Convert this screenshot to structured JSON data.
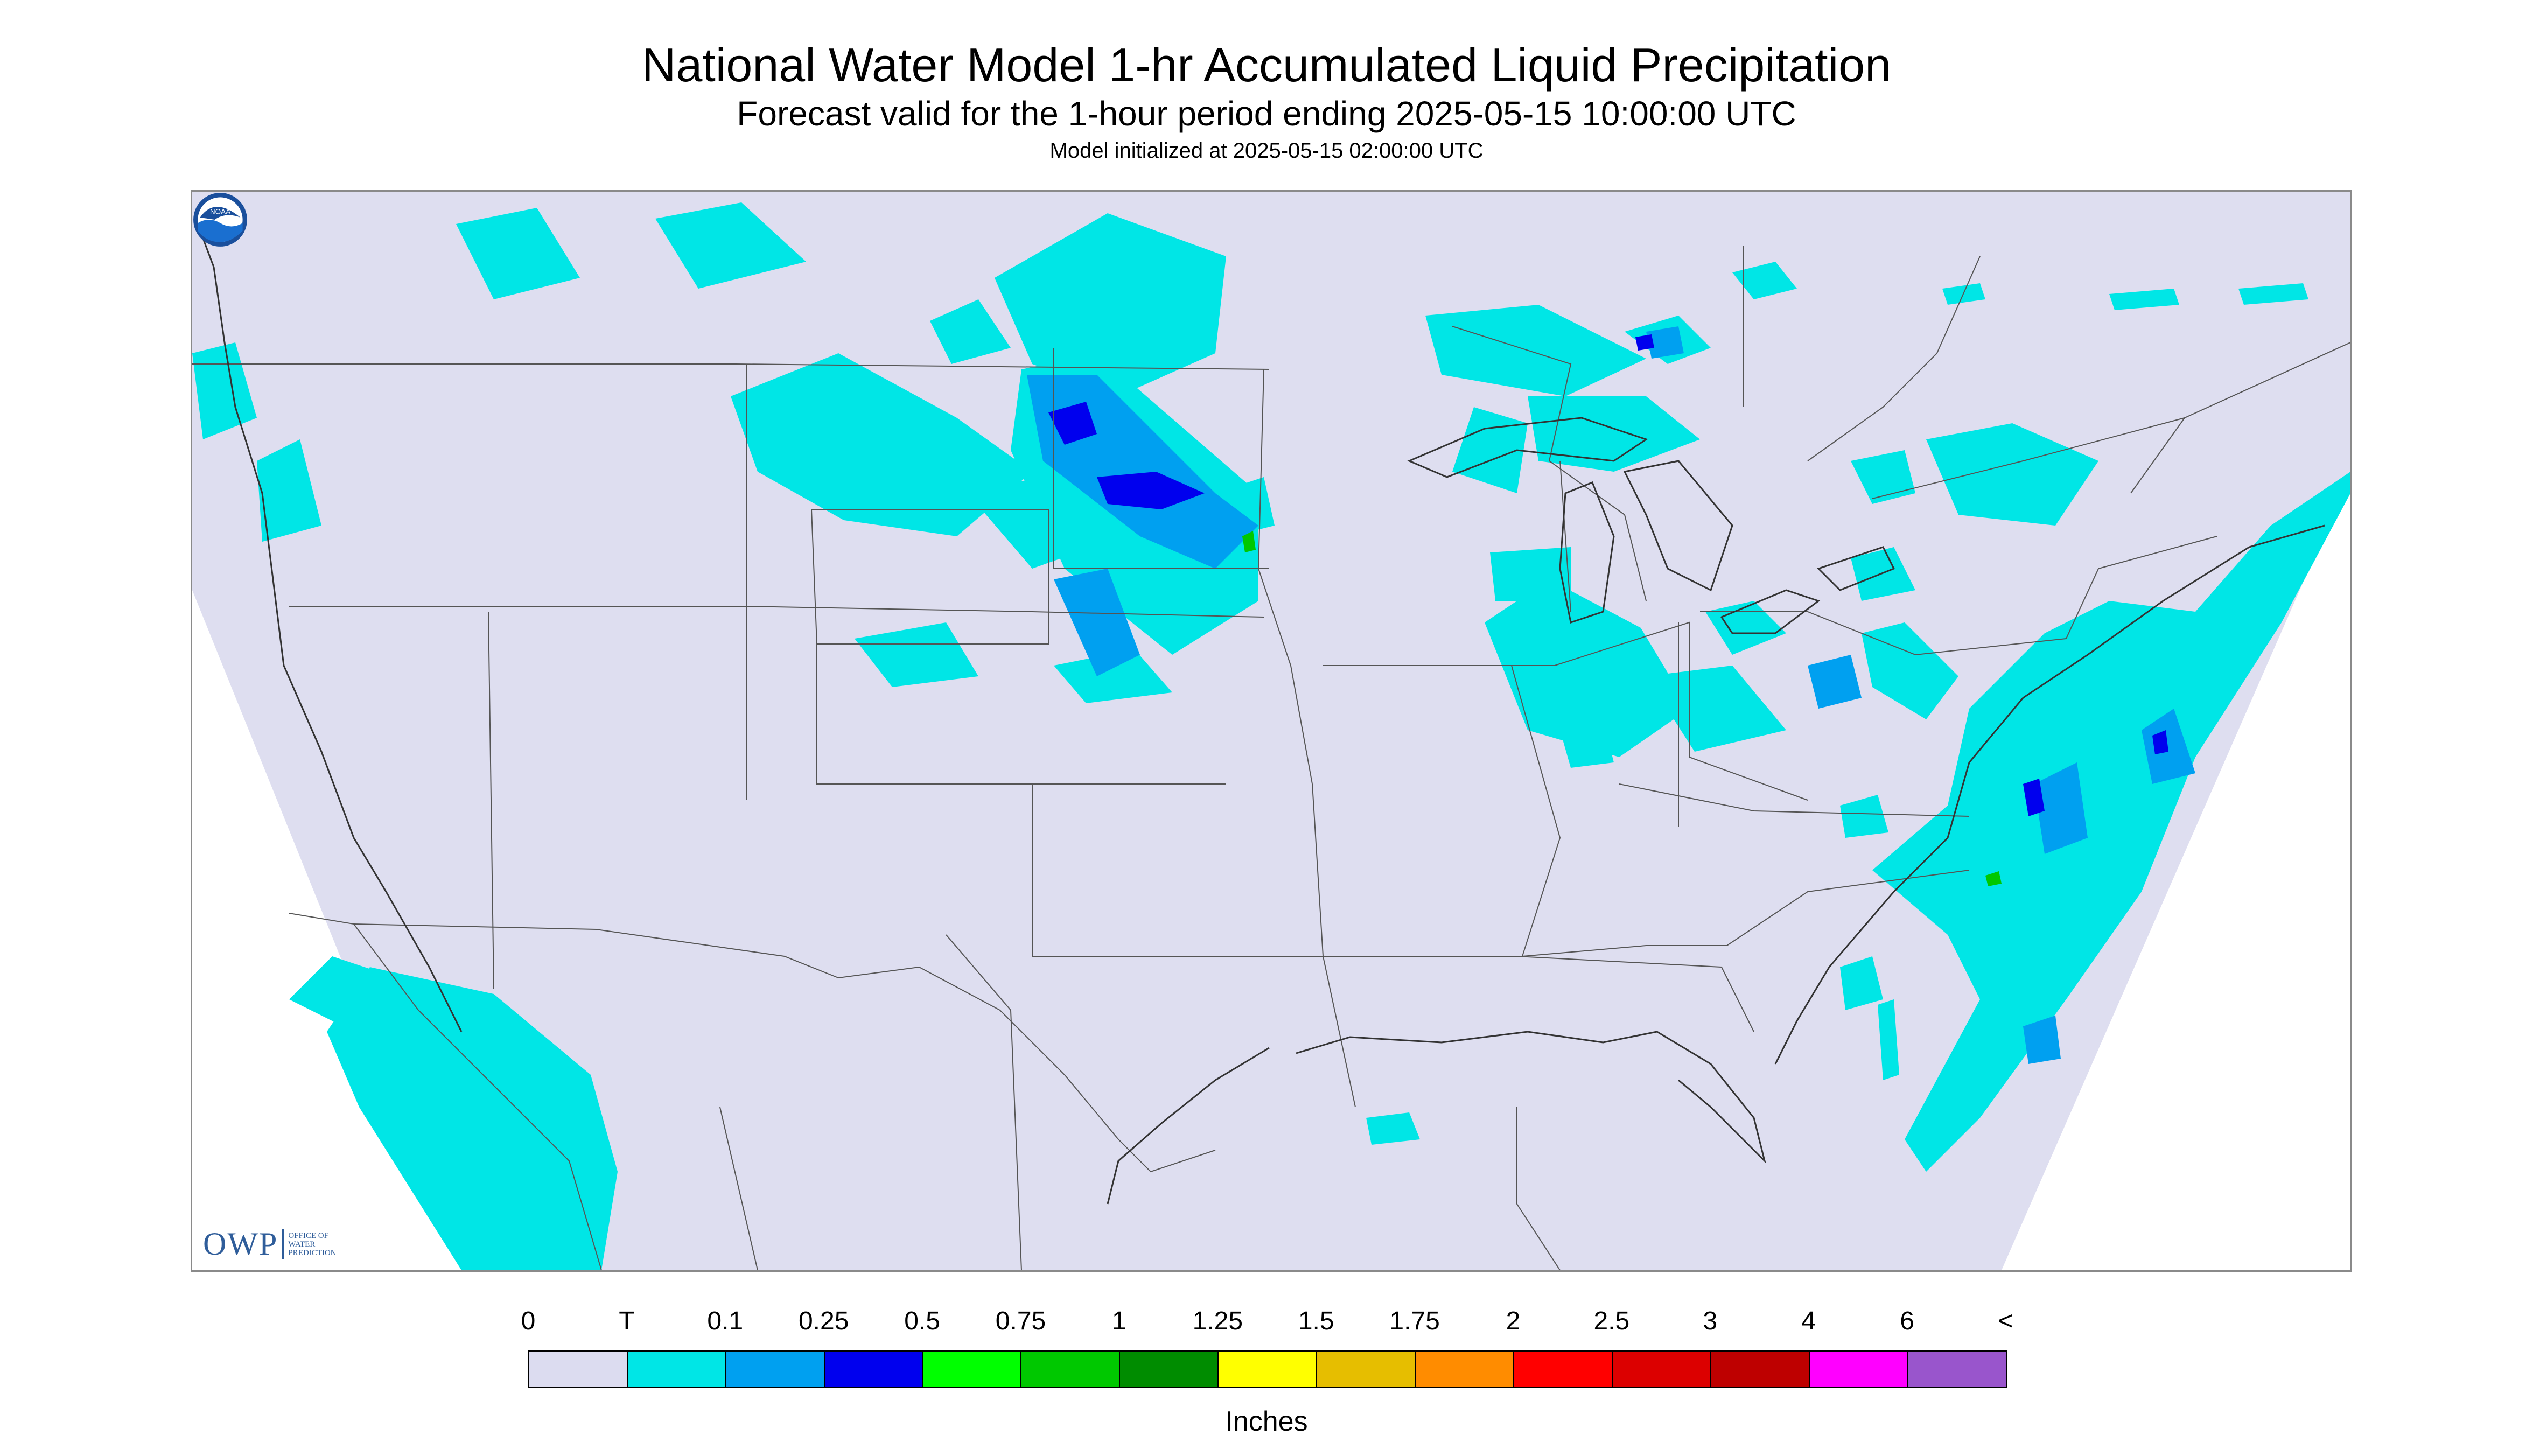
{
  "header": {
    "title": "National Water Model 1-hr Accumulated Liquid Precipitation",
    "subtitle": "Forecast valid for the 1-hour period ending 2025-05-15 10:00:00 UTC",
    "init": "Model initialized at 2025-05-15 02:00:00 UTC"
  },
  "logos": {
    "owp_big": "OWP",
    "owp_small": [
      "OFFICE OF",
      "WATER",
      "PREDICTION"
    ],
    "noaa": "NOAA"
  },
  "legend": {
    "labels": [
      "0",
      "T",
      "0.1",
      "0.25",
      "0.5",
      "0.75",
      "1",
      "1.25",
      "1.5",
      "1.75",
      "2",
      "2.5",
      "3",
      "4",
      "6",
      "<"
    ],
    "colors": [
      "#dcdcf0",
      "#00e6e6",
      "#00a0f0",
      "#0000ee",
      "#00ff00",
      "#00c800",
      "#008c00",
      "#ffff00",
      "#e6be00",
      "#ff8c00",
      "#ff0000",
      "#dc0000",
      "#be0000",
      "#ff00ff",
      "#9955cc"
    ],
    "units": "Inches"
  },
  "map": {
    "background": "#dedef0",
    "outside_domain": "#ffffff",
    "state_lines": "#555555",
    "precip_colors": {
      "trace": "#00e6e6",
      "light": "#00a0f0",
      "moderate": "#0000ee",
      "heavy": "#00c800"
    }
  }
}
